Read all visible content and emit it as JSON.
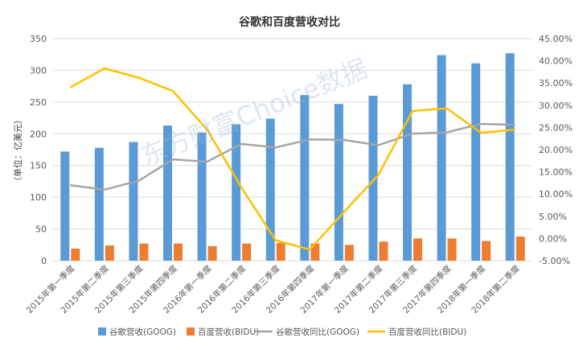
{
  "chart_data": {
    "type": "bar",
    "title": "谷歌和百度营收对比",
    "ylabel_left": "（单位：亿美元）",
    "ylim_left": [
      0,
      350
    ],
    "yticks_left": [
      "0",
      "50",
      "100",
      "150",
      "200",
      "250",
      "300",
      "350"
    ],
    "ylim_right": [
      -0.05,
      0.45
    ],
    "yticks_right": [
      "-5.00%",
      "0.00%",
      "5.00%",
      "10.00%",
      "15.00%",
      "20.00%",
      "25.00%",
      "30.00%",
      "35.00%",
      "40.00%",
      "45.00%"
    ],
    "categories": [
      "2015年第一季度",
      "2015年第二季度",
      "2015年第三季度",
      "2015年第四季度",
      "2016年第一季度",
      "2016年第二季度",
      "2016年第三季度",
      "2016年第四季度",
      "2017年第一季度",
      "2017年第二季度",
      "2017年第三季度",
      "2017年第四季度",
      "2018年第一季度",
      "2018年第二季度"
    ],
    "series": [
      {
        "name": "谷歌营收(GOOG)",
        "type": "bar",
        "axis": "left",
        "color": "#5B9BD5",
        "values": [
          172,
          178,
          187,
          213,
          202,
          215,
          224,
          261,
          247,
          260,
          278,
          324,
          311,
          327
        ]
      },
      {
        "name": "百度营收(BIDU)",
        "type": "bar",
        "axis": "left",
        "color": "#ED7D31",
        "values": [
          19,
          24,
          27,
          27,
          23,
          27,
          28,
          27,
          25,
          30,
          35,
          35,
          31,
          38
        ]
      },
      {
        "name": "谷歌营收同比(GOOG)",
        "type": "line",
        "axis": "right",
        "color": "#A5A5A5",
        "values": [
          0.12,
          0.11,
          0.13,
          0.178,
          0.173,
          0.213,
          0.205,
          0.223,
          0.222,
          0.21,
          0.236,
          0.239,
          0.258,
          0.256
        ]
      },
      {
        "name": "百度营收同比(BIDU)",
        "type": "line",
        "axis": "right",
        "color": "#FFC000",
        "values": [
          0.34,
          0.383,
          0.362,
          0.332,
          0.245,
          0.115,
          -0.004,
          -0.025,
          0.06,
          0.143,
          0.287,
          0.293,
          0.238,
          0.245
        ]
      }
    ],
    "grid": true,
    "legend_position": "bottom",
    "watermark": "东方财富Choice数据"
  }
}
